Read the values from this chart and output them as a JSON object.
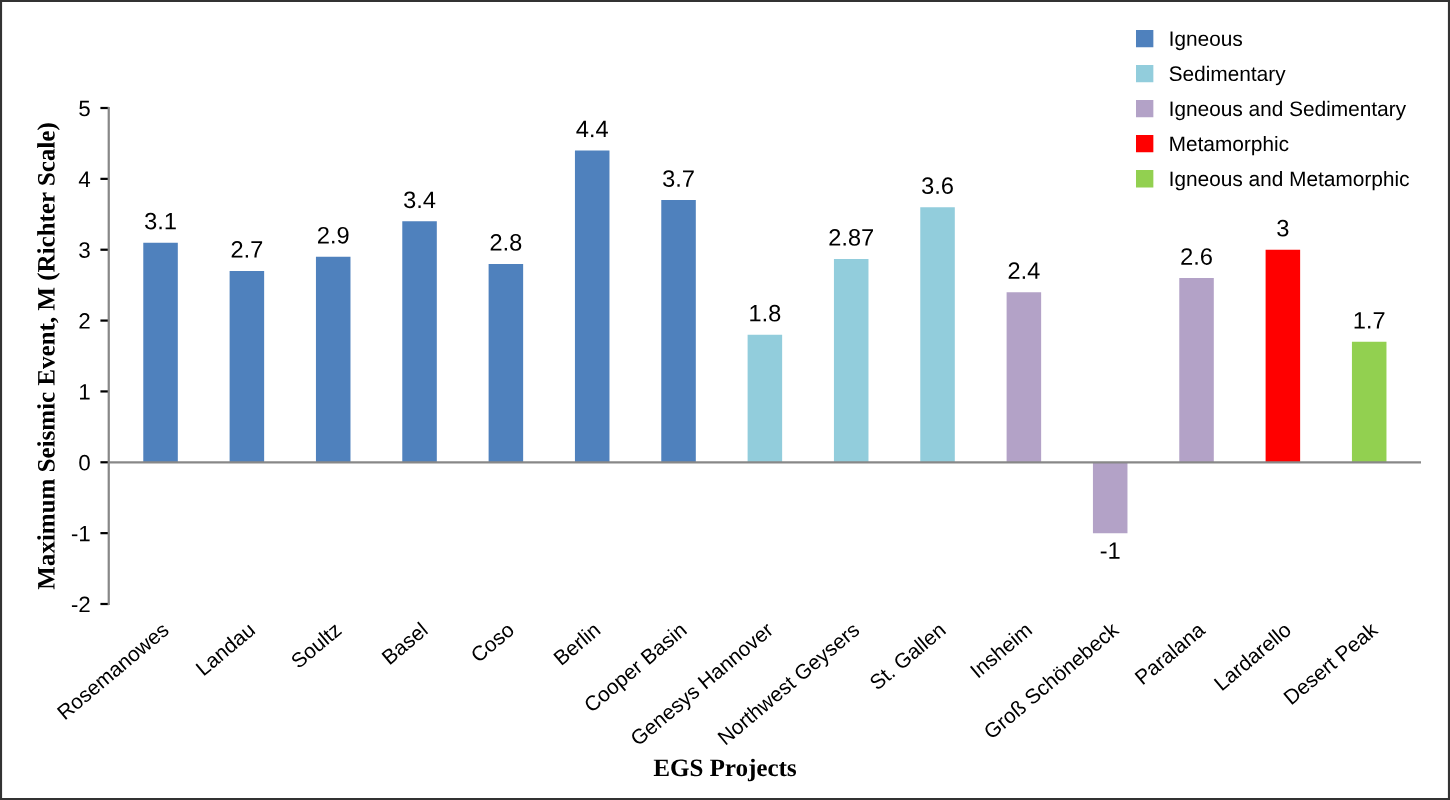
{
  "chart_data": {
    "type": "bar",
    "xlabel": "EGS Projects",
    "ylabel": "Maximum Seismic Event, M (Richter Scale)",
    "categories": [
      "Rosemanowes",
      "Landau",
      "Soultz",
      "Basel",
      "Coso",
      "Berlin",
      "Cooper Basin",
      "Genesys Hannover",
      "Northwest Geysers",
      "St. Gallen",
      "Insheim",
      "Groß Schönebeck",
      "Paralana",
      "Lardarello",
      "Desert Peak"
    ],
    "stacked": true,
    "series": [
      {
        "name": "Igneous",
        "color": "#4f81bd",
        "values": [
          3.1,
          2.7,
          2.9,
          3.4,
          2.8,
          4.4,
          3.7,
          null,
          null,
          null,
          null,
          null,
          null,
          null,
          null
        ]
      },
      {
        "name": "Sedimentary",
        "color": "#92cddc",
        "values": [
          null,
          null,
          null,
          null,
          null,
          null,
          null,
          1.8,
          2.87,
          3.6,
          null,
          null,
          null,
          null,
          null
        ]
      },
      {
        "name": "Igneous and Sedimentary",
        "color": "#b3a2c7",
        "values": [
          null,
          null,
          null,
          null,
          null,
          null,
          null,
          null,
          null,
          null,
          2.4,
          -1,
          2.6,
          null,
          null
        ]
      },
      {
        "name": "Metamorphic",
        "color": "#ff0000",
        "values": [
          null,
          null,
          null,
          null,
          null,
          null,
          null,
          null,
          null,
          null,
          null,
          null,
          null,
          3,
          null
        ]
      },
      {
        "name": "Igneous and Metamorphic",
        "color": "#92d050",
        "values": [
          null,
          null,
          null,
          null,
          null,
          null,
          null,
          null,
          null,
          null,
          null,
          null,
          null,
          null,
          1.7
        ]
      }
    ],
    "ylim": [
      -2,
      5
    ],
    "yticks": [
      -2,
      -1,
      0,
      1,
      2,
      3,
      4,
      5
    ],
    "data_labels": true,
    "legend": "top right"
  }
}
